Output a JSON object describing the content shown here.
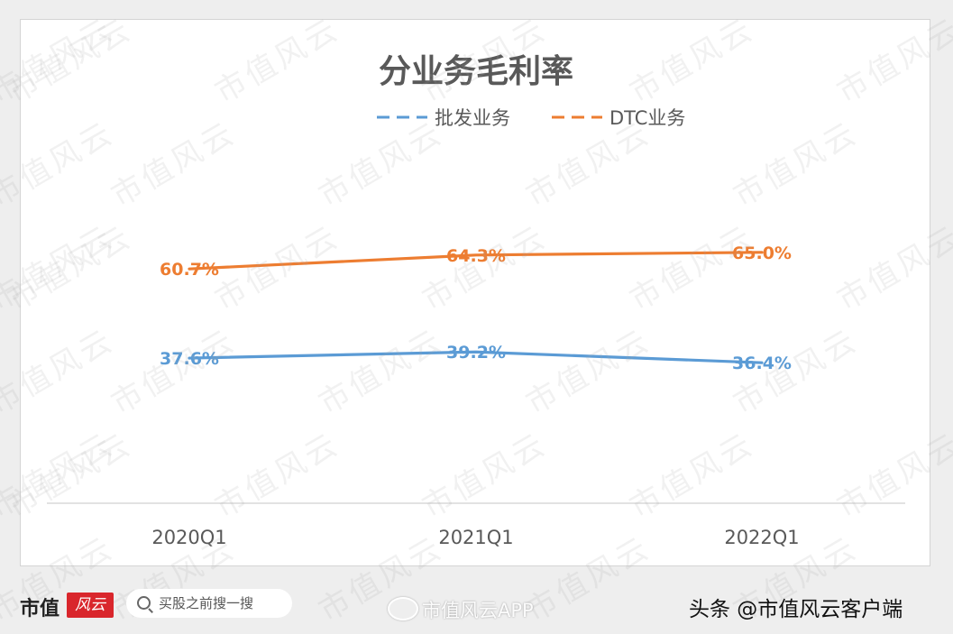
{
  "chart_data": {
    "type": "line",
    "title": "分业务毛利率",
    "categories": [
      "2020Q1",
      "2021Q1",
      "2022Q1"
    ],
    "series": [
      {
        "name": "批发业务",
        "values": [
          37.6,
          39.2,
          36.4
        ],
        "labels": [
          "37.6%",
          "39.2%",
          "36.4%"
        ],
        "color": "#5b9bd5"
      },
      {
        "name": "DTC业务",
        "values": [
          60.7,
          64.3,
          65.0
        ],
        "labels": [
          "60.7%",
          "64.3%",
          "65.0%"
        ],
        "color": "#ed7d31"
      }
    ],
    "ylim": [
      0,
      100
    ],
    "grid": false,
    "legend": "top-center"
  },
  "footer": {
    "brand": "市值",
    "brand_logo": "风云",
    "search_placeholder": "买股之前搜一搜",
    "weibo_text": "市值风云APP",
    "toutiao_text": "头条 @市值风云客户端"
  },
  "watermark": "市值风云"
}
